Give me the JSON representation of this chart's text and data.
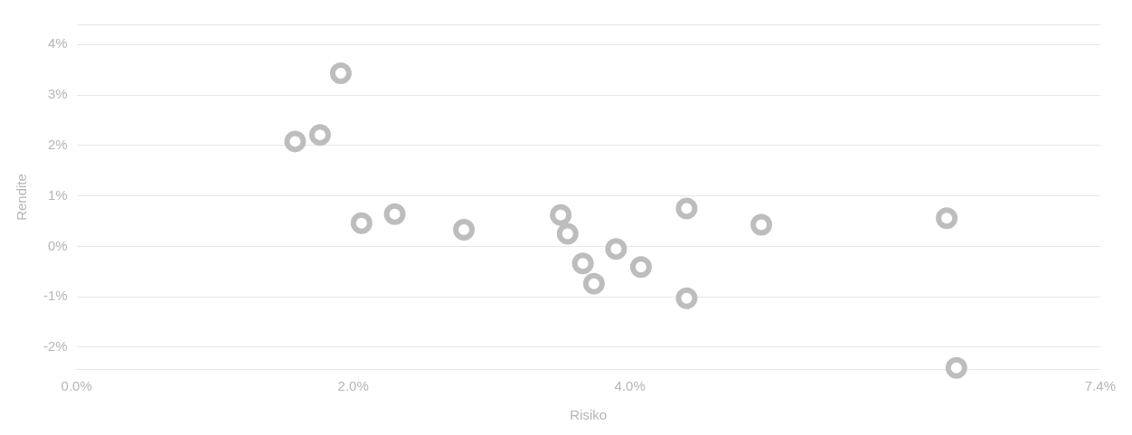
{
  "chart_data": {
    "type": "scatter",
    "xlabel": "Risiko",
    "ylabel": "Rendite",
    "x": [
      1.58,
      1.76,
      1.91,
      2.06,
      2.3,
      2.8,
      3.5,
      3.55,
      3.66,
      3.74,
      3.9,
      4.08,
      4.41,
      4.41,
      4.95,
      6.29,
      6.36
    ],
    "values": [
      2.08,
      2.21,
      3.43,
      0.46,
      0.64,
      0.33,
      0.62,
      0.25,
      -0.34,
      -0.74,
      -0.05,
      -0.41,
      0.75,
      -1.03,
      0.43,
      0.56,
      -2.41
    ],
    "color": "#bdbdbd",
    "marker": "circle",
    "grid": "y",
    "legend": false,
    "xlim": [
      0,
      7.4
    ],
    "xticks": [
      {
        "value": 0,
        "label": "0.0%"
      },
      {
        "value": 2,
        "label": "2.0%"
      },
      {
        "value": 4,
        "label": "4.0%"
      },
      {
        "value": 7.4,
        "label": "7.4%"
      }
    ],
    "ylim": [
      -2.45,
      4.4
    ],
    "yticks": [
      {
        "value": -2,
        "label": "-2%"
      },
      {
        "value": -1,
        "label": "-1%"
      },
      {
        "value": 0,
        "label": "0%"
      },
      {
        "value": 1,
        "label": "1%"
      },
      {
        "value": 2,
        "label": "2%"
      },
      {
        "value": 3,
        "label": "3%"
      },
      {
        "value": 4,
        "label": "4%"
      }
    ]
  }
}
